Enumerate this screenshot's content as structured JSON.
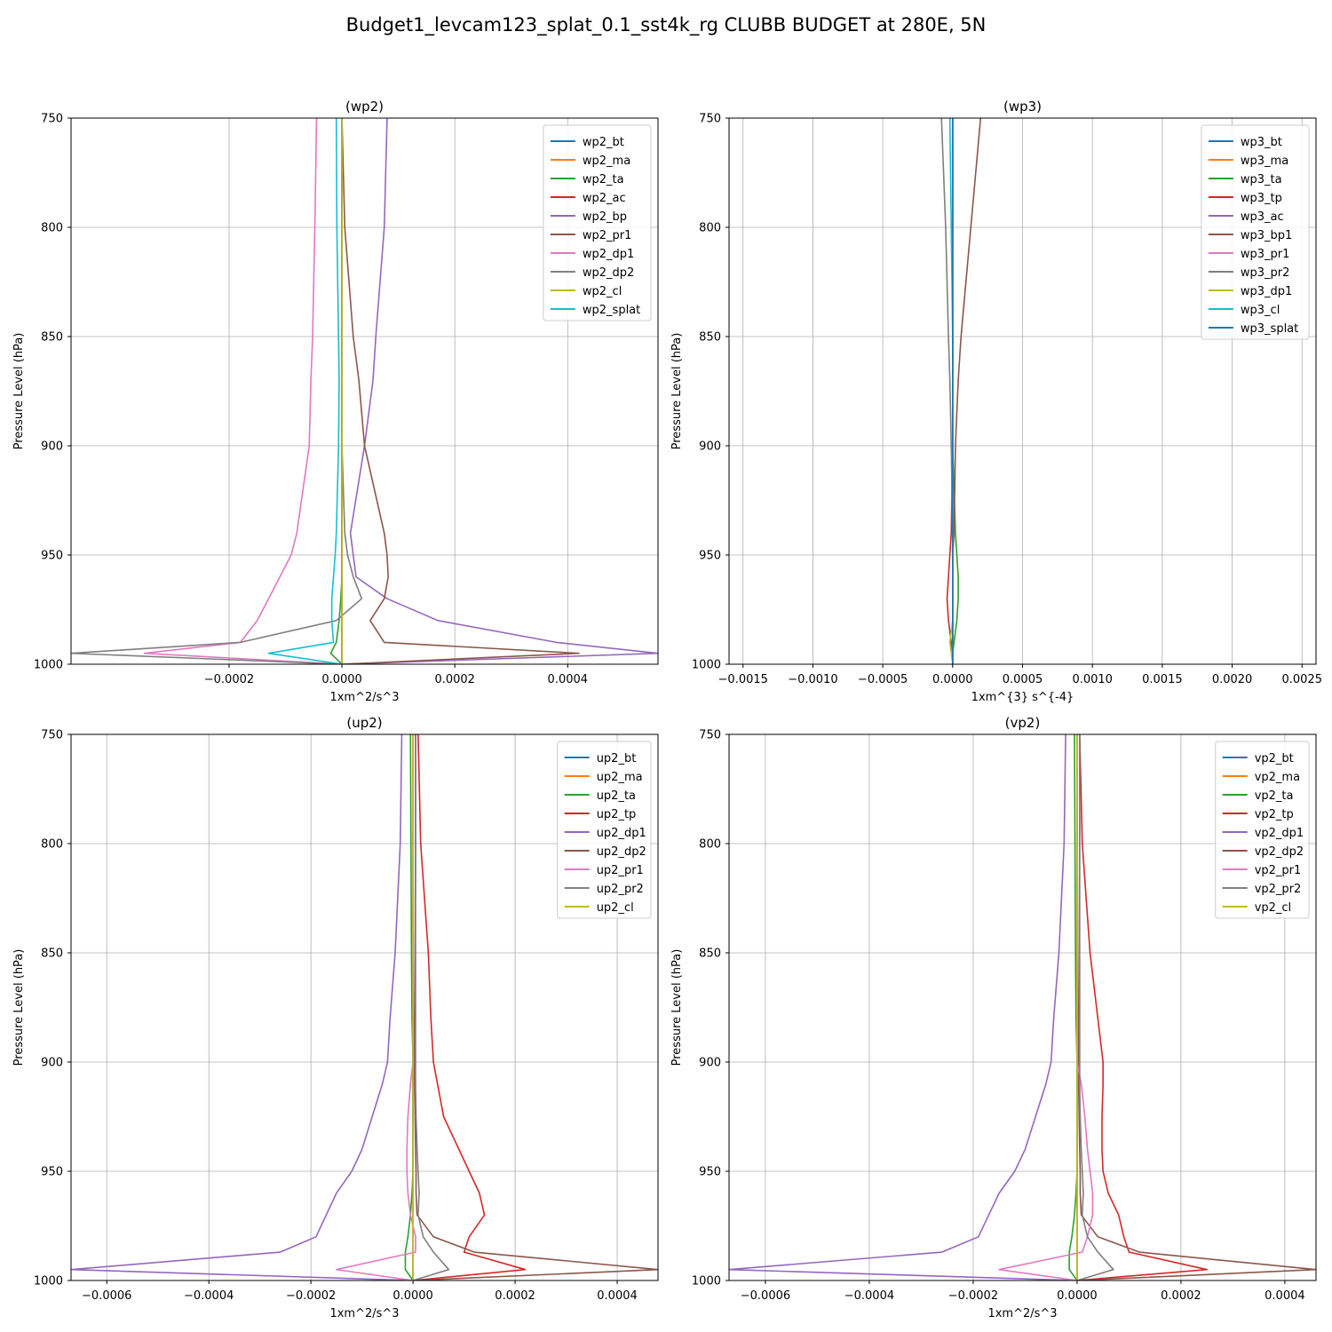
{
  "figure": {
    "suptitle": "Budget1_levcam123_splat_0.1_sst4k_rg CLUBB BUDGET at 280E, 5N"
  },
  "chart_data": [
    {
      "type": "line",
      "title": "(wp2)",
      "xlabel": "1xm^2/s^3",
      "ylabel": "Pressure Level (hPa)",
      "xlim": [
        -0.00048,
        0.00056
      ],
      "ylim": [
        1000,
        750
      ],
      "xticks": [
        -0.0002,
        0.0,
        0.0002,
        0.0004
      ],
      "xtick_labels": [
        "−0.0002",
        "0.0000",
        "0.0002",
        "0.0004"
      ],
      "yticks": [
        750,
        800,
        850,
        900,
        950,
        1000
      ],
      "grid": true,
      "legend": "upper right",
      "y": [
        750,
        800,
        850,
        870,
        900,
        940,
        950,
        960,
        970,
        980,
        990,
        995,
        1000
      ],
      "series": [
        {
          "name": "wp2_bt",
          "color": "#1f77b4",
          "values": [
            0,
            0,
            0,
            0,
            0,
            0,
            0,
            0,
            0,
            0,
            0,
            0,
            0
          ]
        },
        {
          "name": "wp2_ma",
          "color": "#ff7f0e",
          "values": [
            0,
            0,
            0,
            0,
            0,
            0,
            0,
            0,
            0,
            0,
            0,
            0,
            0
          ]
        },
        {
          "name": "wp2_ta",
          "color": "#2ca02c",
          "values": [
            0,
            0,
            0,
            0,
            0,
            0,
            0,
            0,
            -2e-06,
            -5e-06,
            -1e-05,
            -2e-05,
            0
          ]
        },
        {
          "name": "wp2_ac",
          "color": "#d62728",
          "values": [
            0,
            0,
            0,
            0,
            0,
            0,
            0,
            0,
            0,
            0,
            0,
            0,
            0
          ]
        },
        {
          "name": "wp2_bp",
          "color": "#9467bd",
          "values": [
            8e-05,
            7.5e-05,
            6e-05,
            5.5e-05,
            4e-05,
            1.5e-05,
            2e-05,
            2.5e-05,
            8e-05,
            0.00017,
            0.00038,
            0.00056,
            0
          ]
        },
        {
          "name": "wp2_pr1",
          "color": "#8c564b",
          "values": [
            0,
            5e-06,
            2e-05,
            3e-05,
            4e-05,
            7.5e-05,
            8e-05,
            8.2e-05,
            7.5e-05,
            5e-05,
            7.5e-05,
            0.00042,
            0
          ]
        },
        {
          "name": "wp2_dp1",
          "color": "#e377c2",
          "values": [
            -4.5e-05,
            -4.8e-05,
            -5.2e-05,
            -5.5e-05,
            -5.8e-05,
            -8e-05,
            -9e-05,
            -0.00011,
            -0.00013,
            -0.00015,
            -0.00018,
            -0.00035,
            0
          ]
        },
        {
          "name": "wp2_dp2",
          "color": "#7f7f7f",
          "values": [
            0,
            0,
            0,
            0,
            0,
            5e-06,
            1e-05,
            2e-05,
            3.5e-05,
            -1e-05,
            -0.00018,
            -0.00048,
            0
          ]
        },
        {
          "name": "wp2_cl",
          "color": "#bcbd22",
          "values": [
            0,
            0,
            0,
            0,
            0,
            0,
            0,
            0,
            0,
            0,
            0,
            0,
            0
          ]
        },
        {
          "name": "wp2_splat",
          "color": "#17becf",
          "values": [
            -1e-05,
            -9e-06,
            -6e-06,
            -5e-06,
            -6e-06,
            -1e-05,
            -1.2e-05,
            -1.5e-05,
            -1.8e-05,
            -1.8e-05,
            -1.5e-05,
            -0.00013,
            0
          ]
        }
      ]
    },
    {
      "type": "line",
      "title": "(wp3)",
      "xlabel": "1xm^{3} s^{-4}",
      "ylabel": "Pressure Level (hPa)",
      "xlim": [
        -0.0016,
        0.0026
      ],
      "ylim": [
        1000,
        750
      ],
      "xticks": [
        -0.0015,
        -0.001,
        -0.0005,
        0.0,
        0.0005,
        0.001,
        0.0015,
        0.002,
        0.0025
      ],
      "xtick_labels": [
        "−0.0015",
        "−0.0010",
        "−0.0005",
        "0.0000",
        "0.0005",
        "0.0010",
        "0.0015",
        "0.0020",
        "0.0025"
      ],
      "yticks": [
        750,
        800,
        850,
        900,
        950,
        1000
      ],
      "grid": true,
      "legend": "upper right",
      "y": [
        750,
        800,
        850,
        870,
        900,
        940,
        950,
        960,
        970,
        980,
        990,
        995,
        1000
      ],
      "series": [
        {
          "name": "wp3_bt",
          "color": "#1f77b4",
          "values": [
            0,
            0,
            0,
            0,
            0,
            0,
            0,
            0,
            0,
            0,
            0,
            0,
            0
          ]
        },
        {
          "name": "wp3_ma",
          "color": "#ff7f0e",
          "values": [
            0,
            0,
            0,
            0,
            0,
            0,
            0,
            0,
            0,
            0,
            0,
            0,
            0
          ]
        },
        {
          "name": "wp3_ta",
          "color": "#2ca02c",
          "values": [
            0,
            0,
            0,
            0,
            0,
            2e-05,
            3e-05,
            4e-05,
            4e-05,
            3e-05,
            1e-05,
            0,
            0
          ]
        },
        {
          "name": "wp3_tp",
          "color": "#d62728",
          "values": [
            0,
            0,
            0,
            0,
            0,
            -1e-05,
            -2e-05,
            -3e-05,
            -4e-05,
            -3e-05,
            -1e-05,
            0,
            0
          ]
        },
        {
          "name": "wp3_ac",
          "color": "#9467bd",
          "values": [
            0,
            0,
            0,
            0,
            0,
            0,
            0,
            0,
            0,
            0,
            0,
            0,
            0
          ]
        },
        {
          "name": "wp3_bp1",
          "color": "#8c564b",
          "values": [
            0.0002,
            0.00013,
            6e-05,
            4e-05,
            2e-05,
            1e-05,
            0,
            0,
            0,
            0,
            0,
            0,
            0
          ]
        },
        {
          "name": "wp3_pr1",
          "color": "#e377c2",
          "values": [
            0,
            0,
            0,
            0,
            0,
            0,
            0,
            0,
            0,
            0,
            0,
            0,
            0
          ]
        },
        {
          "name": "wp3_pr2",
          "color": "#7f7f7f",
          "values": [
            -8e-05,
            -5e-05,
            -3e-05,
            -2e-05,
            -1e-05,
            0,
            0,
            0,
            0,
            0,
            0,
            0,
            0
          ]
        },
        {
          "name": "wp3_dp1",
          "color": "#bcbd22",
          "values": [
            0,
            0,
            0,
            0,
            0,
            0,
            0,
            0,
            0,
            0,
            -2e-05,
            -1e-05,
            0
          ]
        },
        {
          "name": "wp3_cl",
          "color": "#17becf",
          "values": [
            -2e-05,
            -1e-05,
            0,
            0,
            0,
            0,
            0,
            0,
            0,
            0,
            0,
            0,
            0
          ]
        },
        {
          "name": "wp3_splat",
          "color": "#1f77b4",
          "values": [
            0,
            0,
            0,
            0,
            0,
            0,
            0,
            0,
            0,
            0,
            0,
            0,
            0
          ]
        }
      ]
    },
    {
      "type": "line",
      "title": "(up2)",
      "xlabel": "1xm^2/s^3",
      "ylabel": "Pressure Level (hPa)",
      "xlim": [
        -0.00067,
        0.00048
      ],
      "ylim": [
        1000,
        750
      ],
      "xticks": [
        -0.0006,
        -0.0004,
        -0.0002,
        0.0,
        0.0002,
        0.0004
      ],
      "xtick_labels": [
        "−0.0006",
        "−0.0004",
        "−0.0002",
        "0.0000",
        "0.0002",
        "0.0004"
      ],
      "yticks": [
        750,
        800,
        850,
        900,
        950,
        1000
      ],
      "grid": true,
      "legend": "upper right",
      "y": [
        750,
        800,
        850,
        880,
        900,
        910,
        925,
        940,
        950,
        960,
        970,
        980,
        987,
        995,
        1000
      ],
      "series": [
        {
          "name": "up2_bt",
          "color": "#1f77b4",
          "values": [
            0,
            0,
            0,
            0,
            0,
            0,
            0,
            0,
            0,
            0,
            0,
            0,
            0,
            0,
            0
          ]
        },
        {
          "name": "up2_ma",
          "color": "#ff7f0e",
          "values": [
            0,
            0,
            0,
            0,
            0,
            0,
            0,
            0,
            0,
            0,
            0,
            0,
            0,
            0,
            0
          ]
        },
        {
          "name": "up2_ta",
          "color": "#2ca02c",
          "values": [
            -5e-06,
            -4e-06,
            -3e-06,
            -2e-06,
            0,
            0,
            0,
            0,
            0,
            -2e-06,
            -5e-06,
            -1e-05,
            -1.5e-05,
            -1.5e-05,
            0
          ]
        },
        {
          "name": "up2_tp",
          "color": "#d62728",
          "values": [
            1e-05,
            1.5e-05,
            3e-05,
            3.5e-05,
            4e-05,
            4.8e-05,
            6e-05,
            9e-05,
            0.00011,
            0.00013,
            0.00014,
            0.00011,
            0.0001,
            0.00022,
            0
          ]
        },
        {
          "name": "up2_dp1",
          "color": "#9467bd",
          "values": [
            -2.2e-05,
            -2.5e-05,
            -3.5e-05,
            -4.5e-05,
            -5e-05,
            -6e-05,
            -8e-05,
            -0.0001,
            -0.00012,
            -0.00015,
            -0.00017,
            -0.00019,
            -0.00026,
            -0.00067,
            0
          ]
        },
        {
          "name": "up2_dp2",
          "color": "#8c564b",
          "values": [
            5e-06,
            5e-06,
            4e-06,
            3e-06,
            3e-06,
            3e-06,
            4e-06,
            5e-06,
            6e-06,
            6e-06,
            8e-06,
            4e-05,
            0.00012,
            0.00048,
            0
          ]
        },
        {
          "name": "up2_pr1",
          "color": "#e377c2",
          "values": [
            0,
            0,
            0,
            0,
            0,
            -5e-06,
            -1e-05,
            -1.2e-05,
            -1.2e-05,
            -1e-05,
            -5e-06,
            5e-06,
            5e-06,
            -0.00015,
            0
          ]
        },
        {
          "name": "up2_pr2",
          "color": "#7f7f7f",
          "values": [
            5e-06,
            5e-06,
            5e-06,
            5e-06,
            5e-06,
            5e-06,
            6e-06,
            8e-06,
            1e-05,
            1.2e-05,
            1e-05,
            2e-05,
            4e-05,
            7e-05,
            0
          ]
        },
        {
          "name": "up2_cl",
          "color": "#bcbd22",
          "values": [
            0,
            0,
            0,
            0,
            0,
            0,
            0,
            0,
            0,
            0,
            0,
            0,
            0,
            0,
            0
          ]
        }
      ]
    },
    {
      "type": "line",
      "title": "(vp2)",
      "xlabel": "1xm^2/s^3",
      "ylabel": "Pressure Level (hPa)",
      "xlim": [
        -0.00067,
        0.00046
      ],
      "ylim": [
        1000,
        750
      ],
      "xticks": [
        -0.0006,
        -0.0004,
        -0.0002,
        0.0,
        0.0002,
        0.0004
      ],
      "xtick_labels": [
        "−0.0006",
        "−0.0004",
        "−0.0002",
        "0.0000",
        "0.0002",
        "0.0004"
      ],
      "yticks": [
        750,
        800,
        850,
        900,
        950,
        1000
      ],
      "grid": true,
      "legend": "upper right",
      "y": [
        750,
        800,
        850,
        880,
        900,
        910,
        925,
        940,
        950,
        960,
        970,
        980,
        987,
        995,
        1000
      ],
      "series": [
        {
          "name": "vp2_bt",
          "color": "#1f77b4",
          "values": [
            0,
            0,
            0,
            0,
            0,
            0,
            0,
            0,
            0,
            0,
            0,
            0,
            0,
            0,
            0
          ]
        },
        {
          "name": "vp2_ma",
          "color": "#ff7f0e",
          "values": [
            0,
            0,
            0,
            0,
            0,
            0,
            0,
            0,
            0,
            0,
            0,
            0,
            0,
            0,
            0
          ]
        },
        {
          "name": "vp2_ta",
          "color": "#2ca02c",
          "values": [
            -5e-06,
            -4e-06,
            -3e-06,
            -2e-06,
            0,
            0,
            0,
            0,
            0,
            -2e-06,
            -5e-06,
            -1e-05,
            -1.5e-05,
            -1.5e-05,
            0
          ]
        },
        {
          "name": "vp2_tp",
          "color": "#d62728",
          "values": [
            5e-06,
            1e-05,
            2.5e-05,
            4e-05,
            5e-05,
            5e-05,
            4.8e-05,
            4.8e-05,
            5e-05,
            6e-05,
            8e-05,
            9e-05,
            0.0001,
            0.00025,
            0
          ]
        },
        {
          "name": "vp2_dp1",
          "color": "#9467bd",
          "values": [
            -2.2e-05,
            -2.5e-05,
            -3.5e-05,
            -4.5e-05,
            -5e-05,
            -6e-05,
            -8e-05,
            -0.0001,
            -0.00012,
            -0.00015,
            -0.00017,
            -0.00019,
            -0.00026,
            -0.00067,
            0
          ]
        },
        {
          "name": "vp2_dp2",
          "color": "#8c564b",
          "values": [
            5e-06,
            5e-06,
            4e-06,
            3e-06,
            3e-06,
            3e-06,
            4e-06,
            5e-06,
            6e-06,
            6e-06,
            8e-06,
            4e-05,
            0.00012,
            0.00046,
            0
          ]
        },
        {
          "name": "vp2_pr1",
          "color": "#e377c2",
          "values": [
            0,
            0,
            0,
            0,
            0,
            8e-06,
            1.5e-05,
            2e-05,
            2.5e-05,
            3e-05,
            3e-05,
            2e-05,
            1e-05,
            -0.00015,
            0
          ]
        },
        {
          "name": "vp2_pr2",
          "color": "#7f7f7f",
          "values": [
            5e-06,
            5e-06,
            5e-06,
            5e-06,
            5e-06,
            5e-06,
            6e-06,
            8e-06,
            1e-05,
            1.2e-05,
            1e-05,
            2e-05,
            4e-05,
            7e-05,
            0
          ]
        },
        {
          "name": "vp2_cl",
          "color": "#bcbd22",
          "values": [
            0,
            0,
            0,
            0,
            0,
            0,
            0,
            0,
            0,
            0,
            0,
            0,
            0,
            0,
            0
          ]
        }
      ]
    }
  ]
}
